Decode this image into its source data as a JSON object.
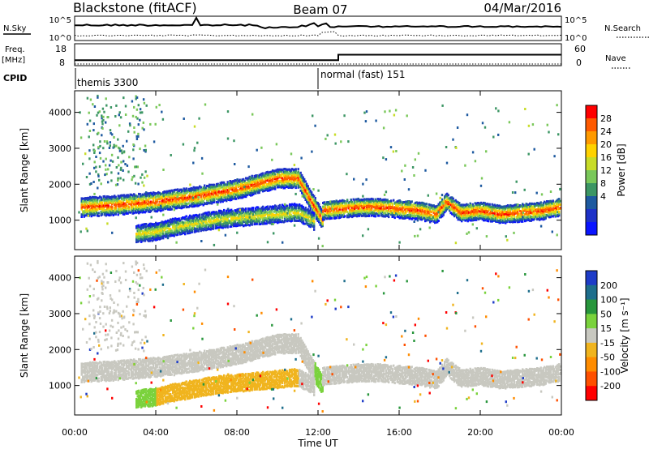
{
  "header": {
    "station": "Blackstone (fitACF)",
    "beam": "Beam 07",
    "date": "04/Mar/2016"
  },
  "chart_data": [
    {
      "type": "line",
      "panel": "noise",
      "left_label": "N.Sky",
      "right_label": "N.Search",
      "left_ticks": [
        "10^5",
        "10^0"
      ],
      "right_ticks": [
        "10^5",
        "10^0"
      ],
      "series": [
        {
          "name": "N.Sky",
          "style": "solid"
        },
        {
          "name": "N.Search",
          "style": "dotted"
        }
      ]
    },
    {
      "type": "line",
      "panel": "frequency",
      "left_label": "Freq.",
      "left_unit": "[MHz]",
      "right_label": "Nave",
      "left_ticks": [
        "18",
        "8"
      ],
      "right_ticks": [
        "60",
        "0"
      ],
      "freq_x": [
        0,
        13.0,
        13.0,
        24
      ],
      "freq_mhz": [
        10.5,
        10.5,
        13.0,
        13.0
      ]
    },
    {
      "type": "table",
      "panel": "cpid",
      "label": "CPID",
      "modes": [
        {
          "start_hour": 0,
          "text": "themis 3300"
        },
        {
          "start_hour": 12,
          "text": "normal (fast) 151"
        }
      ]
    },
    {
      "type": "heatmap",
      "panel": "power",
      "ylabel": "Slant Range [km]",
      "ylim": [
        180,
        4600
      ],
      "y_ticks": [
        1000,
        2000,
        3000,
        4000
      ],
      "colorbar_label": "Power [dB]",
      "colorbar_ticks": [
        "28",
        "24",
        "20",
        "16",
        "12",
        "8",
        "4"
      ],
      "colorbar_colors": [
        "#ff0000",
        "#ff5a00",
        "#ff9a00",
        "#ffd200",
        "#c8dc28",
        "#7ac85a",
        "#3c9664",
        "#1e5aa0",
        "#1e32c8",
        "#0a14ff"
      ],
      "bands": [
        {
          "x": [
            0.3,
            2,
            4,
            6,
            7,
            8,
            9,
            10,
            11,
            11.7,
            12.2
          ],
          "y": [
            1400,
            1450,
            1550,
            1700,
            1800,
            1900,
            2050,
            2200,
            2200,
            1500,
            1050
          ],
          "halfwidth": 170,
          "peak_db": 28
        },
        {
          "x": [
            12.2,
            13,
            14,
            15,
            16,
            17,
            17.8,
            18.3,
            19,
            20,
            21,
            22,
            23,
            23.9
          ],
          "y": [
            1300,
            1350,
            1400,
            1400,
            1350,
            1300,
            1200,
            1550,
            1250,
            1300,
            1200,
            1250,
            1300,
            1400
          ],
          "halfwidth": 160,
          "peak_db": 28
        },
        {
          "x": [
            3,
            4,
            5,
            6,
            7,
            8,
            9,
            10,
            11,
            11.8
          ],
          "y": [
            650,
            720,
            850,
            950,
            1050,
            1100,
            1150,
            1200,
            1250,
            1000
          ],
          "halfwidth": 150,
          "peak_db": 18
        }
      ]
    },
    {
      "type": "heatmap",
      "panel": "velocity",
      "ylabel": "Slant Range [km]",
      "ylim": [
        180,
        4600
      ],
      "y_ticks": [
        1000,
        2000,
        3000,
        4000
      ],
      "colorbar_label": "Velocity [m s⁻¹]",
      "colorbar_ticks": [
        "200",
        "100",
        "50",
        "15",
        "-15",
        "-50",
        "-100",
        "-200"
      ],
      "colorbar_colors": [
        "#1e3cc8",
        "#1e6e8c",
        "#28963c",
        "#7ad23c",
        "#c8c8c0",
        "#f0b41e",
        "#ff8c00",
        "#ff5000",
        "#ff0000"
      ],
      "x_label": "Time UT",
      "x_ticks": [
        "00:00",
        "04:00",
        "08:00",
        "12:00",
        "16:00",
        "20:00",
        "00:00"
      ],
      "xlim_hours": [
        0,
        24
      ]
    }
  ]
}
